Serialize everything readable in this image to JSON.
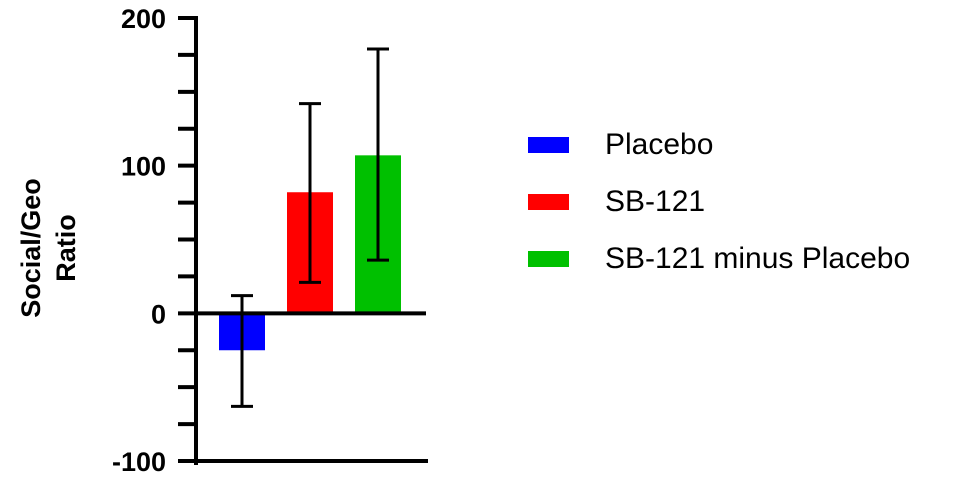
{
  "chart_data": {
    "type": "bar",
    "title": "",
    "xlabel": "",
    "ylabel": "Social/Geo Ratio",
    "ylabel_lines": [
      "Social/Geo",
      "Ratio"
    ],
    "ylim": [
      -100,
      200
    ],
    "yticks_major": [
      200,
      100,
      0,
      -100
    ],
    "yticks_minor_step": 25,
    "grid": false,
    "legend_position": "right",
    "categories": [
      "Placebo",
      "SB-121",
      "SB-121 minus Placebo"
    ],
    "values": [
      -25,
      82,
      107
    ],
    "error_upper": [
      12,
      142,
      179
    ],
    "error_lower": [
      -63,
      21,
      36
    ],
    "colors": [
      "#0000ff",
      "#ff0000",
      "#00c000"
    ]
  },
  "legend": {
    "items": [
      {
        "label": "Placebo",
        "color": "#0000ff"
      },
      {
        "label": "SB-121",
        "color": "#ff0000"
      },
      {
        "label": "SB-121 minus Placebo",
        "color": "#00c000"
      }
    ]
  }
}
